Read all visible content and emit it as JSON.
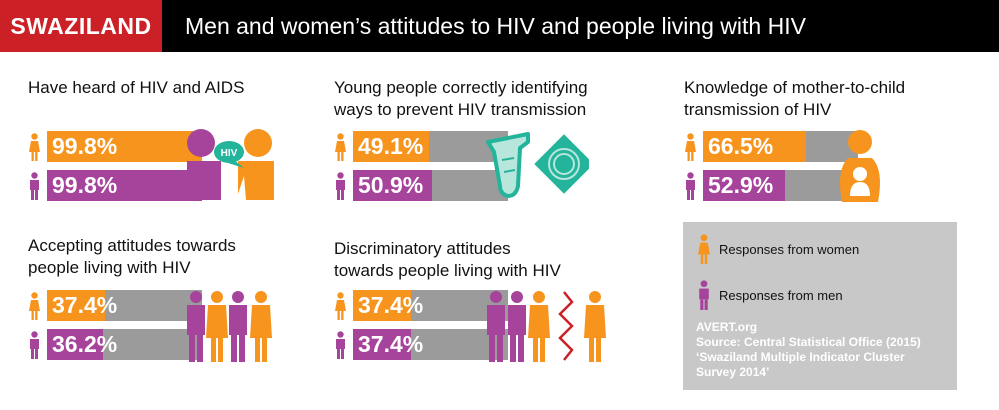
{
  "header": {
    "country": "SWAZILAND",
    "title": "Men and women’s attitudes to HIV and people living with HIV"
  },
  "colors": {
    "women": "#f7941d",
    "men": "#a6449c",
    "bar_bg": "#9b9b9b",
    "header_red": "#cc2027"
  },
  "chart_data": [
    {
      "type": "bar",
      "title": "Have heard of HIV and AIDS",
      "categories": [
        "Women",
        "Men"
      ],
      "values": [
        99.8,
        99.8
      ],
      "labels": [
        "99.8%",
        "99.8%"
      ],
      "ylim": [
        0,
        100
      ]
    },
    {
      "type": "bar",
      "title": "Young people correctly identifying ways to prevent HIV transmission",
      "categories": [
        "Women",
        "Men"
      ],
      "values": [
        49.1,
        50.9
      ],
      "labels": [
        "49.1%",
        "50.9%"
      ],
      "ylim": [
        0,
        100
      ]
    },
    {
      "type": "bar",
      "title": "Knowledge of mother-to-child transmission of HIV",
      "categories": [
        "Women",
        "Men"
      ],
      "values": [
        66.5,
        52.9
      ],
      "labels": [
        "66.5%",
        "52.9%"
      ],
      "ylim": [
        0,
        100
      ]
    },
    {
      "type": "bar",
      "title": "Accepting attitudes towards people living with HIV",
      "categories": [
        "Women",
        "Men"
      ],
      "values": [
        37.4,
        36.2
      ],
      "labels": [
        "37.4%",
        "36.2%"
      ],
      "ylim": [
        0,
        100
      ]
    },
    {
      "type": "bar",
      "title": "Discriminatory attitudes towards people living with HIV",
      "categories": [
        "Women",
        "Men"
      ],
      "values": [
        37.4,
        37.4
      ],
      "labels": [
        "37.4%",
        "37.4%"
      ],
      "ylim": [
        0,
        100
      ]
    }
  ],
  "sections": {
    "heard": {
      "title_l1": "Have heard of HIV and AIDS",
      "title_l2": "",
      "bubble": "HIV"
    },
    "young": {
      "title_l1": "Young people correctly identifying",
      "title_l2": "ways to prevent HIV transmission"
    },
    "mtct": {
      "title_l1": "Knowledge of mother-to-child",
      "title_l2": "transmission of HIV"
    },
    "accept": {
      "title_l1": "Accepting attitudes towards",
      "title_l2": "people living with HIV"
    },
    "discrim": {
      "title_l1": "Discriminatory attitudes",
      "title_l2": "towards people living with HIV"
    }
  },
  "legend": {
    "women": "Responses from women",
    "men": "Responses from men",
    "source_l1": "AVERT.org",
    "source_l2": "Source: Central Statistical Office (2015)",
    "source_l3": "‘Swaziland Multiple Indicator Cluster",
    "source_l4": "Survey 2014’"
  }
}
